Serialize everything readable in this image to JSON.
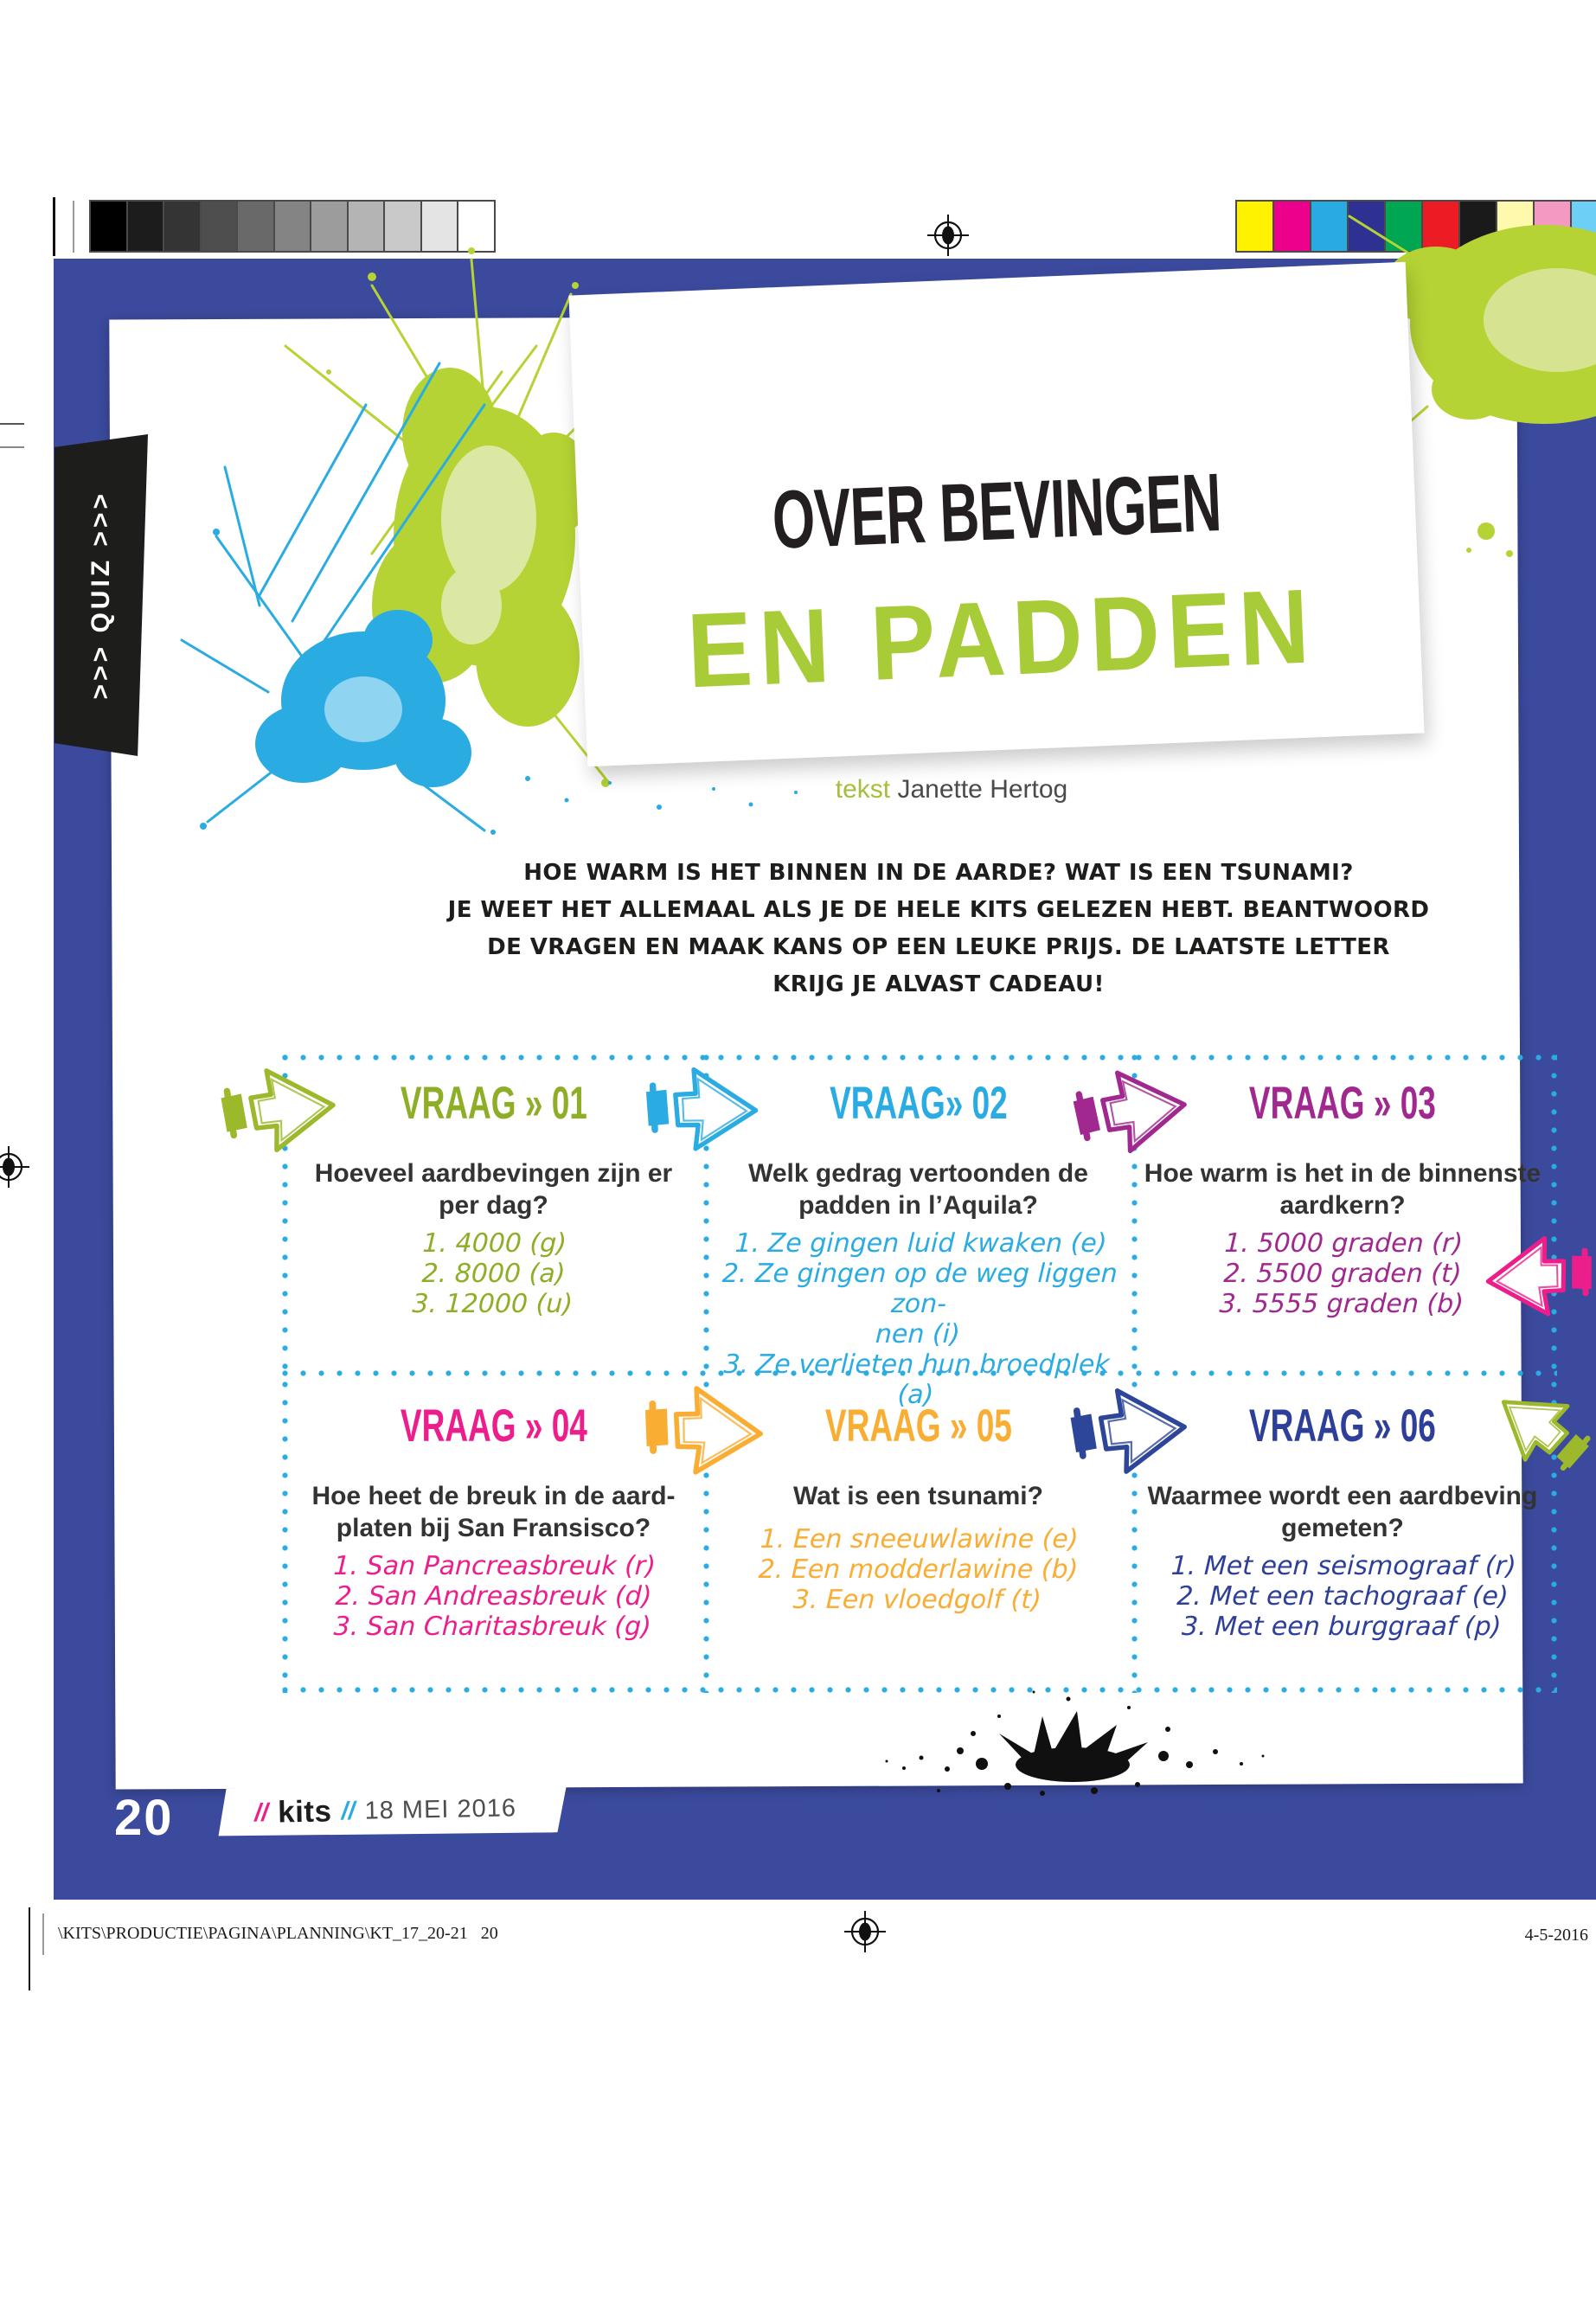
{
  "print_marks": {
    "grayscale_swatches": [
      "#000000",
      "#1c1c1c",
      "#343434",
      "#4e4e4e",
      "#696969",
      "#848484",
      "#9c9c9c",
      "#b4b4b4",
      "#c9c9c9",
      "#e4e4e4",
      "#ffffff"
    ],
    "color_swatches": [
      "#fff200",
      "#ec008c",
      "#29abe2",
      "#2e3192",
      "#00a651",
      "#ed1c24",
      "#1a1a1a",
      "#fff9ae",
      "#f49ac1",
      "#6dcff6"
    ]
  },
  "colors": {
    "page_blue": "#3b4a9d",
    "dot_cyan": "#2aabe2",
    "tab_black": "#1d1d1b",
    "title_green": "#a8cb38",
    "title_black": "#231f20"
  },
  "side_tab": {
    "label": ">>> QUIZ >>>"
  },
  "header": {
    "title_line1": "OVER BEVINGEN",
    "title_line2": "EN PADDEN",
    "byline_label": "tekst",
    "byline_name": "Janette Hertog"
  },
  "intro_lines": [
    "HOE WARM IS HET BINNEN IN DE AARDE? WAT IS EEN TSUNAMI?",
    "JE WEET HET ALLEMAAL ALS JE DE HELE KITS GELEZEN HEBT. BEANTWOORD",
    "DE VRAGEN EN MAAK KANS OP EEN LEUKE PRIJS. DE LAATSTE LETTER",
    "KRIJG JE ALVAST CADEAU!"
  ],
  "quiz": [
    {
      "header": "VRAAG » 01",
      "color": "#8fae27",
      "question_lines": [
        "Hoeveel aardbevingen zijn er",
        "per dag?"
      ],
      "answer_lines": [
        "1. 4000 (g)",
        "2. 8000 (a)",
        "3. 12000 (u)"
      ]
    },
    {
      "header": "VRAAG» 02",
      "color": "#2aabe2",
      "question_lines": [
        "Welk gedrag vertoonden de",
        "padden in l’Aquila?"
      ],
      "answer_lines": [
        "1. Ze gingen luid kwaken (e)",
        "2. Ze gingen op de weg liggen zon-",
        "nen (i)",
        "3. Ze verlieten hun broedplek  (a)"
      ]
    },
    {
      "header": "VRAAG » 03",
      "color": "#a0288f",
      "question_lines": [
        "Hoe warm is het in de binnenste",
        "aardkern?"
      ],
      "answer_lines": [
        "1. 5000 graden  (r)",
        "2. 5500 graden  (t)",
        "3. 5555 graden  (b)"
      ]
    },
    {
      "header": "VRAAG » 04",
      "color": "#ec1e8c",
      "question_lines": [
        "Hoe heet de breuk in de aard-",
        "platen bij San Fransisco?"
      ],
      "answer_lines": [
        "1. San Pancreasbreuk (r)",
        "2. San Andreasbreuk (d)",
        "3. San Charitasbreuk (g)"
      ]
    },
    {
      "header": "VRAAG » 05",
      "color": "#f9ad33",
      "question_lines": [
        "Wat is een tsunami?"
      ],
      "answer_lines": [
        "1. Een sneeuwlawine (e)",
        "2. Een modderlawine (b)",
        "3. Een vloedgolf (t)"
      ]
    },
    {
      "header": "VRAAG » 06",
      "color": "#2e3f99",
      "question_lines": [
        "Waarmee wordt een aardbeving",
        "gemeten?"
      ],
      "answer_lines": [
        "1. Met een seismograaf (r)",
        "2. Met een tachograaf (e)",
        "3. Met een burggraaf (p)"
      ]
    }
  ],
  "arrows": [
    {
      "name": "arrow-q1",
      "color": "#9cb82b"
    },
    {
      "name": "arrow-q2",
      "color": "#2aabe2"
    },
    {
      "name": "arrow-q3",
      "color": "#a0288f"
    },
    {
      "name": "arrow-q3-right",
      "color": "#ec1e8c"
    },
    {
      "name": "arrow-q5",
      "color": "#f9ad33"
    },
    {
      "name": "arrow-q6",
      "color": "#2e4699"
    },
    {
      "name": "arrow-q6-right",
      "color": "#9cb82b"
    }
  ],
  "footer": {
    "page_number": "20",
    "slash_left": "//",
    "brand": "kits",
    "slash_right": "//",
    "issue_date": "18 MEI 2016",
    "path_line": "\\KITS\\PRODUCTIE\\PAGINA\\PLANNING\\KT_17_20-21   20",
    "print_date": "4-5-2016"
  }
}
